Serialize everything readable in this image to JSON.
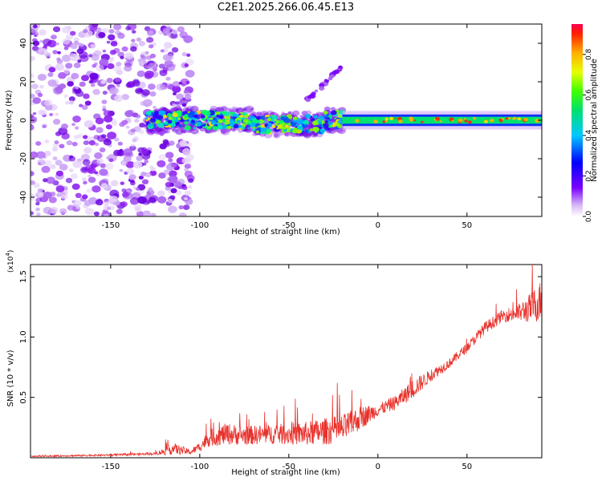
{
  "title": "C2E1.2025.266.06.45.E13",
  "chart_data": [
    {
      "type": "heatmap",
      "xlabel": "Height of straight line (km)",
      "ylabel": "Frequency (Hz)",
      "xlim": [
        -195,
        92
      ],
      "ylim": [
        -50,
        50
      ],
      "xticks": [
        "-150",
        "-100",
        "-50",
        "0",
        "50"
      ],
      "yticks": [
        "-40",
        "-20",
        "0",
        "20",
        "40"
      ],
      "colorbar": {
        "label": "Normalized spectral amplitude",
        "range": [
          0,
          0.95
        ],
        "ticks": [
          "0.0",
          "0.2",
          "0.4",
          "0.6",
          "0.8"
        ]
      },
      "features": [
        {
          "name": "broadband noise",
          "x_range": [
            -195,
            -125
          ],
          "f_range": [
            -50,
            50
          ]
        },
        {
          "name": "broadband noise",
          "x_range": [
            -122,
            -105
          ],
          "f_range": [
            -50,
            50
          ]
        },
        {
          "name": "signal band",
          "x_range": [
            -130,
            -20
          ],
          "f_center": 0,
          "f_halfwidth": 6
        },
        {
          "name": "drifting line",
          "x_range": [
            -40,
            -20
          ],
          "f_start": 10,
          "f_end": 28
        },
        {
          "name": "steady tone",
          "x_range": [
            -20,
            92
          ],
          "f_center": 0,
          "f_halfwidth": 3
        }
      ]
    },
    {
      "type": "line",
      "xlabel": "Height of straight line (km)",
      "ylabel": "SNR (10 * v/v)",
      "y_multiplier": "(x10",
      "y_multiplier_exp": "4",
      "y_multiplier_close": ")",
      "xlim": [
        -195,
        92
      ],
      "ylim": [
        0,
        1.6
      ],
      "xticks": [
        "-150",
        "-100",
        "-50",
        "0",
        "50"
      ],
      "yticks": [
        "0.5",
        "1.0",
        "1.5"
      ],
      "color": "#e8302a",
      "series_envelope": {
        "x": [
          -195,
          -150,
          -125,
          -118,
          -115,
          -105,
          -100,
          -95,
          -85,
          -75,
          -60,
          -40,
          -20,
          -10,
          0,
          10,
          20,
          30,
          40,
          50,
          60,
          70,
          80,
          85,
          92
        ],
        "y_mean": [
          0.01,
          0.02,
          0.03,
          0.05,
          0.06,
          0.04,
          0.08,
          0.14,
          0.17,
          0.16,
          0.17,
          0.17,
          0.2,
          0.3,
          0.38,
          0.44,
          0.55,
          0.67,
          0.77,
          0.9,
          1.06,
          1.16,
          1.18,
          1.2,
          1.25
        ],
        "y_noise": [
          0.005,
          0.008,
          0.01,
          0.04,
          0.05,
          0.02,
          0.04,
          0.07,
          0.09,
          0.08,
          0.08,
          0.1,
          0.12,
          0.1,
          0.05,
          0.06,
          0.08,
          0.05,
          0.04,
          0.04,
          0.05,
          0.05,
          0.08,
          0.12,
          0.18
        ]
      }
    }
  ]
}
